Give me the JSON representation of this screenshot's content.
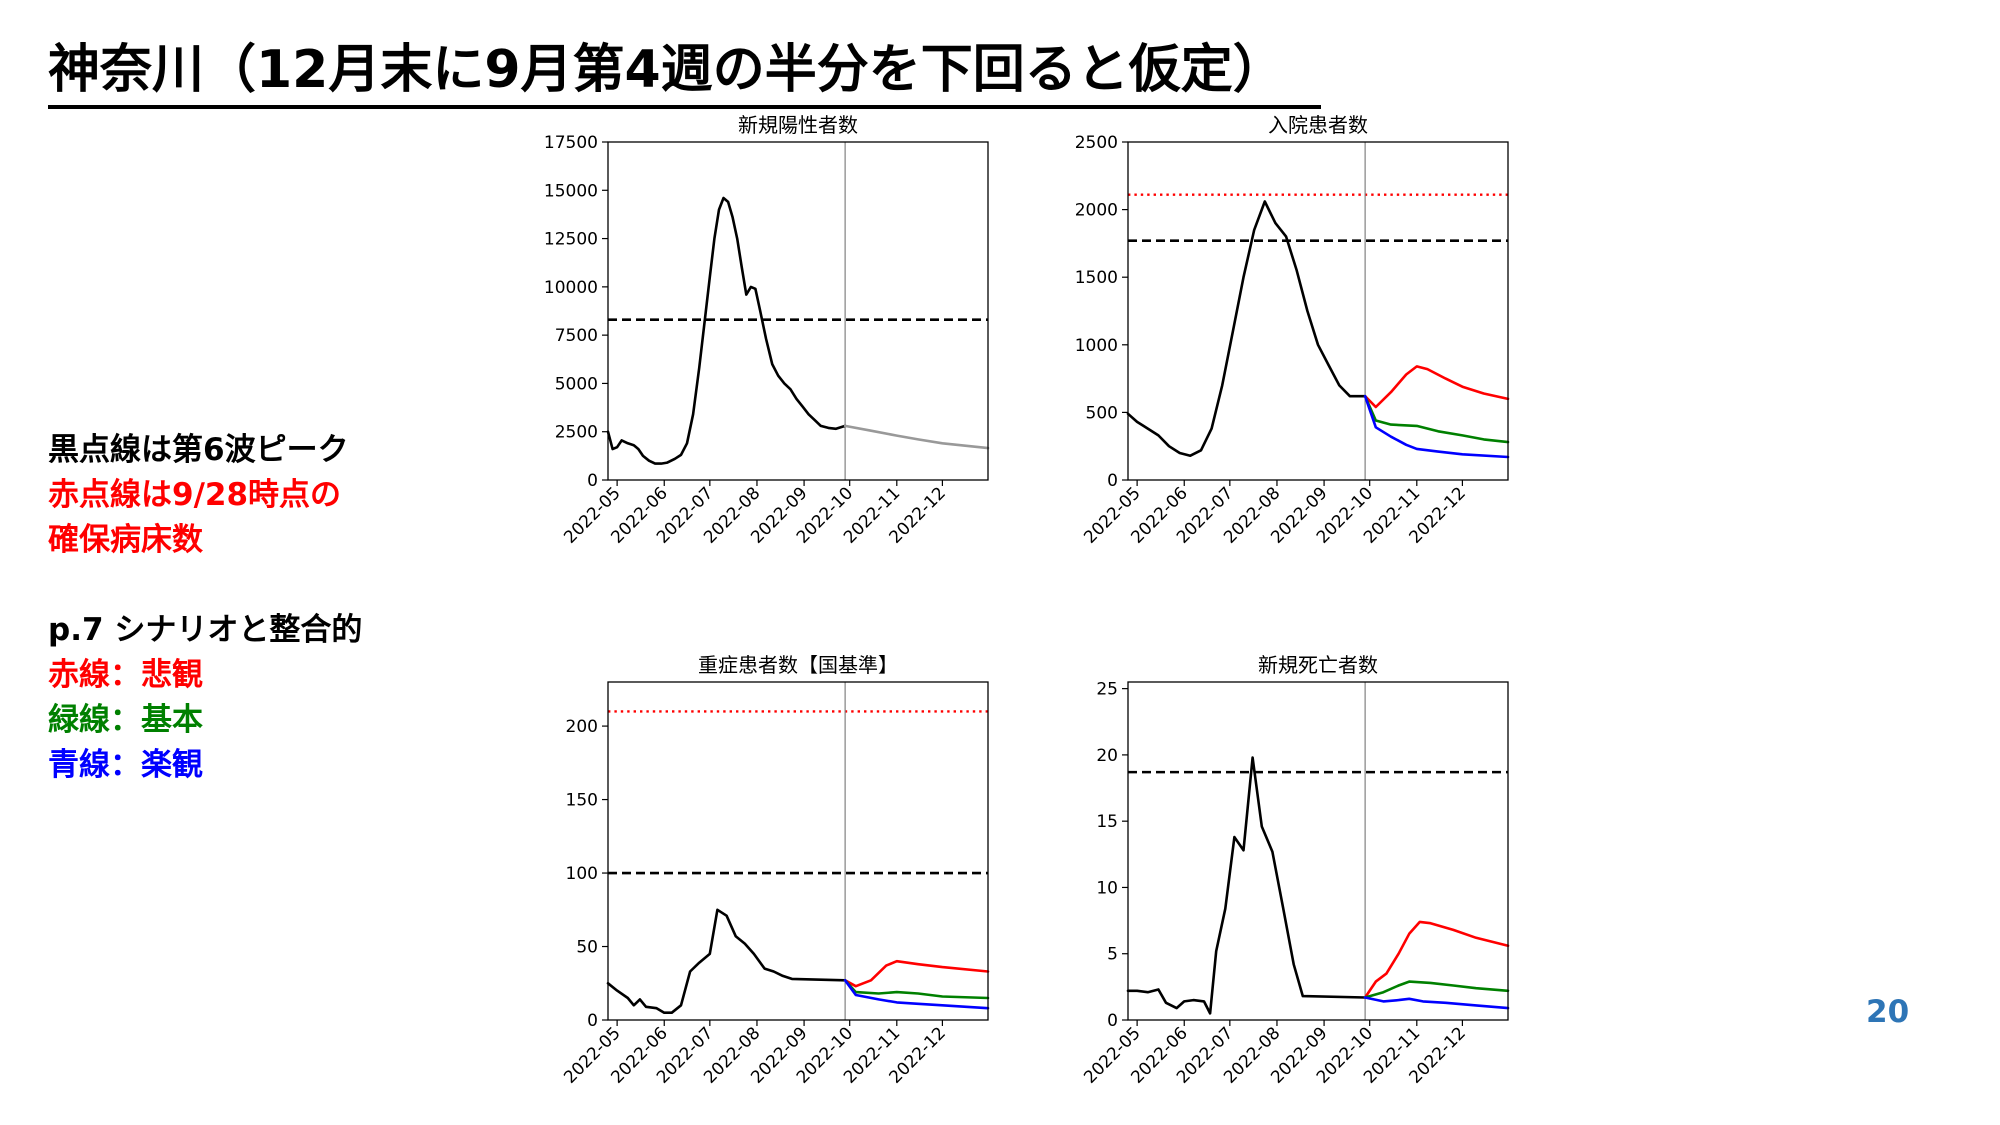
{
  "slide": {
    "title": "神奈川（12月末に9月第4週の半分を下回ると仮定）",
    "page_number": "20"
  },
  "notes": {
    "lines": [
      {
        "text": "黒点線は第6波ピーク",
        "color": "#000000"
      },
      {
        "text": "赤点線は9/28時点の",
        "color": "#ff0000"
      },
      {
        "text": "確保病床数",
        "color": "#ff0000"
      },
      {
        "text": "p.7 シナリオと整合的",
        "color": "#000000"
      },
      {
        "text": "赤線：悲観",
        "color": "#ff0000"
      },
      {
        "text": "緑線：基本",
        "color": "#008000"
      },
      {
        "text": "青線：楽観",
        "color": "#0000ff"
      }
    ]
  },
  "colors": {
    "observed": "#000000",
    "projection": "#999999",
    "pessimistic": "#ff0000",
    "baseline": "#008000",
    "optimistic": "#0000ff",
    "peak_line": "#000000",
    "bed_capacity_line": "#ff0000"
  },
  "chart_data": [
    {
      "type": "line",
      "title": "新規陽性者数",
      "x_ticks": [
        "2022-05",
        "2022-06",
        "2022-07",
        "2022-08",
        "2022-09",
        "2022-10",
        "2022-11",
        "2022-12"
      ],
      "xlim": [
        "2022-04-25",
        "2022-12-31"
      ],
      "ylim": [
        0,
        17500
      ],
      "yticks": [
        0,
        2500,
        5000,
        7500,
        10000,
        12500,
        15000,
        17500
      ],
      "grid": false,
      "vline": "2022-09-28",
      "hlines": [
        {
          "value": 8300,
          "style": "dashed",
          "color": "#000000"
        }
      ],
      "series": [
        {
          "color": "#000000",
          "points": [
            [
              "2022-04-25",
              2500
            ],
            [
              "2022-04-28",
              1600
            ],
            [
              "2022-05-01",
              1700
            ],
            [
              "2022-05-04",
              2050
            ],
            [
              "2022-05-08",
              1900
            ],
            [
              "2022-05-12",
              1800
            ],
            [
              "2022-05-15",
              1600
            ],
            [
              "2022-05-18",
              1250
            ],
            [
              "2022-05-22",
              1000
            ],
            [
              "2022-05-26",
              850
            ],
            [
              "2022-05-30",
              850
            ],
            [
              "2022-06-03",
              900
            ],
            [
              "2022-06-08",
              1100
            ],
            [
              "2022-06-12",
              1300
            ],
            [
              "2022-06-16",
              1900
            ],
            [
              "2022-06-20",
              3400
            ],
            [
              "2022-06-24",
              5800
            ],
            [
              "2022-06-28",
              8500
            ],
            [
              "2022-07-01",
              10500
            ],
            [
              "2022-07-04",
              12500
            ],
            [
              "2022-07-07",
              14000
            ],
            [
              "2022-07-10",
              14600
            ],
            [
              "2022-07-13",
              14400
            ],
            [
              "2022-07-16",
              13600
            ],
            [
              "2022-07-19",
              12500
            ],
            [
              "2022-07-22",
              11000
            ],
            [
              "2022-07-25",
              9600
            ],
            [
              "2022-07-28",
              10000
            ],
            [
              "2022-07-31",
              9900
            ],
            [
              "2022-08-03",
              8800
            ],
            [
              "2022-08-07",
              7300
            ],
            [
              "2022-08-11",
              6000
            ],
            [
              "2022-08-15",
              5400
            ],
            [
              "2022-08-19",
              5000
            ],
            [
              "2022-08-23",
              4700
            ],
            [
              "2022-08-27",
              4200
            ],
            [
              "2022-08-31",
              3800
            ],
            [
              "2022-09-04",
              3400
            ],
            [
              "2022-09-08",
              3100
            ],
            [
              "2022-09-12",
              2800
            ],
            [
              "2022-09-17",
              2700
            ],
            [
              "2022-09-22",
              2650
            ],
            [
              "2022-09-28",
              2800
            ]
          ]
        },
        {
          "color": "#999999",
          "points": [
            [
              "2022-09-28",
              2800
            ],
            [
              "2022-10-15",
              2550
            ],
            [
              "2022-11-01",
              2300
            ],
            [
              "2022-11-15",
              2100
            ],
            [
              "2022-12-01",
              1900
            ],
            [
              "2022-12-31",
              1650
            ]
          ]
        }
      ]
    },
    {
      "type": "line",
      "title": "入院患者数",
      "x_ticks": [
        "2022-05",
        "2022-06",
        "2022-07",
        "2022-08",
        "2022-09",
        "2022-10",
        "2022-11",
        "2022-12"
      ],
      "xlim": [
        "2022-04-25",
        "2022-12-31"
      ],
      "ylim": [
        0,
        2500
      ],
      "yticks": [
        0,
        500,
        1000,
        1500,
        2000,
        2500
      ],
      "grid": false,
      "vline": "2022-09-28",
      "hlines": [
        {
          "value": 1770,
          "style": "dashed",
          "color": "#000000"
        },
        {
          "value": 2110,
          "style": "dotted",
          "color": "#ff0000"
        }
      ],
      "series": [
        {
          "color": "#000000",
          "points": [
            [
              "2022-04-25",
              490
            ],
            [
              "2022-05-01",
              430
            ],
            [
              "2022-05-08",
              380
            ],
            [
              "2022-05-15",
              330
            ],
            [
              "2022-05-22",
              250
            ],
            [
              "2022-05-29",
              200
            ],
            [
              "2022-06-05",
              180
            ],
            [
              "2022-06-12",
              220
            ],
            [
              "2022-06-19",
              380
            ],
            [
              "2022-06-26",
              700
            ],
            [
              "2022-07-03",
              1100
            ],
            [
              "2022-07-10",
              1500
            ],
            [
              "2022-07-17",
              1850
            ],
            [
              "2022-07-24",
              2060
            ],
            [
              "2022-07-31",
              1900
            ],
            [
              "2022-08-07",
              1800
            ],
            [
              "2022-08-14",
              1550
            ],
            [
              "2022-08-21",
              1250
            ],
            [
              "2022-08-28",
              1000
            ],
            [
              "2022-09-04",
              850
            ],
            [
              "2022-09-11",
              700
            ],
            [
              "2022-09-18",
              620
            ],
            [
              "2022-09-28",
              620
            ]
          ]
        },
        {
          "color": "#ff0000",
          "points": [
            [
              "2022-09-28",
              620
            ],
            [
              "2022-10-05",
              540
            ],
            [
              "2022-10-15",
              650
            ],
            [
              "2022-10-25",
              780
            ],
            [
              "2022-11-01",
              840
            ],
            [
              "2022-11-08",
              820
            ],
            [
              "2022-11-20",
              750
            ],
            [
              "2022-12-01",
              690
            ],
            [
              "2022-12-15",
              640
            ],
            [
              "2022-12-31",
              600
            ]
          ]
        },
        {
          "color": "#008000",
          "points": [
            [
              "2022-09-28",
              620
            ],
            [
              "2022-10-05",
              440
            ],
            [
              "2022-10-15",
              410
            ],
            [
              "2022-11-01",
              400
            ],
            [
              "2022-11-15",
              360
            ],
            [
              "2022-12-01",
              330
            ],
            [
              "2022-12-15",
              300
            ],
            [
              "2022-12-31",
              280
            ]
          ]
        },
        {
          "color": "#0000ff",
          "points": [
            [
              "2022-09-28",
              620
            ],
            [
              "2022-10-05",
              390
            ],
            [
              "2022-10-15",
              320
            ],
            [
              "2022-10-25",
              260
            ],
            [
              "2022-11-01",
              230
            ],
            [
              "2022-11-15",
              210
            ],
            [
              "2022-12-01",
              190
            ],
            [
              "2022-12-31",
              170
            ]
          ]
        }
      ]
    },
    {
      "type": "line",
      "title": "重症患者数【国基準】",
      "x_ticks": [
        "2022-05",
        "2022-06",
        "2022-07",
        "2022-08",
        "2022-09",
        "2022-10",
        "2022-11",
        "2022-12"
      ],
      "xlim": [
        "2022-04-25",
        "2022-12-31"
      ],
      "ylim": [
        0,
        230
      ],
      "yticks": [
        0,
        50,
        100,
        150,
        200
      ],
      "grid": false,
      "vline": "2022-09-28",
      "hlines": [
        {
          "value": 100,
          "style": "dashed",
          "color": "#000000"
        },
        {
          "value": 210,
          "style": "dotted",
          "color": "#ff0000"
        }
      ],
      "series": [
        {
          "color": "#000000",
          "points": [
            [
              "2022-04-25",
              25
            ],
            [
              "2022-05-01",
              20
            ],
            [
              "2022-05-08",
              15
            ],
            [
              "2022-05-12",
              10
            ],
            [
              "2022-05-16",
              14
            ],
            [
              "2022-05-20",
              9
            ],
            [
              "2022-05-27",
              8
            ],
            [
              "2022-06-01",
              5
            ],
            [
              "2022-06-06",
              5
            ],
            [
              "2022-06-12",
              10
            ],
            [
              "2022-06-18",
              33
            ],
            [
              "2022-06-24",
              39
            ],
            [
              "2022-07-01",
              45
            ],
            [
              "2022-07-06",
              75
            ],
            [
              "2022-07-12",
              71
            ],
            [
              "2022-07-18",
              57
            ],
            [
              "2022-07-24",
              52
            ],
            [
              "2022-07-30",
              45
            ],
            [
              "2022-08-06",
              35
            ],
            [
              "2022-08-12",
              33
            ],
            [
              "2022-08-18",
              30
            ],
            [
              "2022-08-24",
              28
            ],
            [
              "2022-09-28",
              27
            ]
          ]
        },
        {
          "color": "#ff0000",
          "points": [
            [
              "2022-09-28",
              27
            ],
            [
              "2022-10-05",
              23
            ],
            [
              "2022-10-15",
              27
            ],
            [
              "2022-10-25",
              37
            ],
            [
              "2022-11-01",
              40
            ],
            [
              "2022-11-15",
              38
            ],
            [
              "2022-12-01",
              36
            ],
            [
              "2022-12-31",
              33
            ]
          ]
        },
        {
          "color": "#008000",
          "points": [
            [
              "2022-09-28",
              27
            ],
            [
              "2022-10-05",
              19
            ],
            [
              "2022-10-20",
              18
            ],
            [
              "2022-11-01",
              19
            ],
            [
              "2022-11-15",
              18
            ],
            [
              "2022-12-01",
              16
            ],
            [
              "2022-12-31",
              15
            ]
          ]
        },
        {
          "color": "#0000ff",
          "points": [
            [
              "2022-09-28",
              27
            ],
            [
              "2022-10-05",
              17
            ],
            [
              "2022-10-20",
              14
            ],
            [
              "2022-11-01",
              12
            ],
            [
              "2022-11-15",
              11
            ],
            [
              "2022-12-01",
              10
            ],
            [
              "2022-12-31",
              8
            ]
          ]
        }
      ]
    },
    {
      "type": "line",
      "title": "新規死亡者数",
      "x_ticks": [
        "2022-05",
        "2022-06",
        "2022-07",
        "2022-08",
        "2022-09",
        "2022-10",
        "2022-11",
        "2022-12"
      ],
      "xlim": [
        "2022-04-25",
        "2022-12-31"
      ],
      "ylim": [
        0,
        25.5
      ],
      "yticks": [
        0,
        5,
        10,
        15,
        20,
        25
      ],
      "grid": false,
      "vline": "2022-09-28",
      "hlines": [
        {
          "value": 18.7,
          "style": "dashed",
          "color": "#000000"
        }
      ],
      "series": [
        {
          "color": "#000000",
          "points": [
            [
              "2022-04-25",
              2.2
            ],
            [
              "2022-05-01",
              2.2
            ],
            [
              "2022-05-08",
              2.1
            ],
            [
              "2022-05-15",
              2.3
            ],
            [
              "2022-05-20",
              1.3
            ],
            [
              "2022-05-27",
              0.9
            ],
            [
              "2022-06-01",
              1.4
            ],
            [
              "2022-06-07",
              1.5
            ],
            [
              "2022-06-14",
              1.4
            ],
            [
              "2022-06-18",
              0.5
            ],
            [
              "2022-06-22",
              5.2
            ],
            [
              "2022-06-28",
              8.4
            ],
            [
              "2022-07-04",
              13.8
            ],
            [
              "2022-07-10",
              12.8
            ],
            [
              "2022-07-16",
              19.8
            ],
            [
              "2022-07-22",
              14.6
            ],
            [
              "2022-07-29",
              12.7
            ],
            [
              "2022-08-05",
              8.5
            ],
            [
              "2022-08-12",
              4.2
            ],
            [
              "2022-08-18",
              1.8
            ],
            [
              "2022-09-28",
              1.7
            ]
          ]
        },
        {
          "color": "#ff0000",
          "points": [
            [
              "2022-09-28",
              1.7
            ],
            [
              "2022-10-05",
              2.9
            ],
            [
              "2022-10-12",
              3.5
            ],
            [
              "2022-10-20",
              5.0
            ],
            [
              "2022-10-27",
              6.5
            ],
            [
              "2022-11-03",
              7.4
            ],
            [
              "2022-11-10",
              7.3
            ],
            [
              "2022-11-25",
              6.8
            ],
            [
              "2022-12-10",
              6.2
            ],
            [
              "2022-12-31",
              5.6
            ]
          ]
        },
        {
          "color": "#008000",
          "points": [
            [
              "2022-09-28",
              1.7
            ],
            [
              "2022-10-10",
              2.1
            ],
            [
              "2022-10-20",
              2.6
            ],
            [
              "2022-10-27",
              2.9
            ],
            [
              "2022-11-10",
              2.8
            ],
            [
              "2022-11-25",
              2.6
            ],
            [
              "2022-12-10",
              2.4
            ],
            [
              "2022-12-31",
              2.2
            ]
          ]
        },
        {
          "color": "#0000ff",
          "points": [
            [
              "2022-09-28",
              1.7
            ],
            [
              "2022-10-10",
              1.4
            ],
            [
              "2022-10-20",
              1.5
            ],
            [
              "2022-10-27",
              1.6
            ],
            [
              "2022-11-05",
              1.4
            ],
            [
              "2022-11-20",
              1.3
            ],
            [
              "2022-12-10",
              1.1
            ],
            [
              "2022-12-31",
              0.9
            ]
          ]
        }
      ]
    }
  ]
}
